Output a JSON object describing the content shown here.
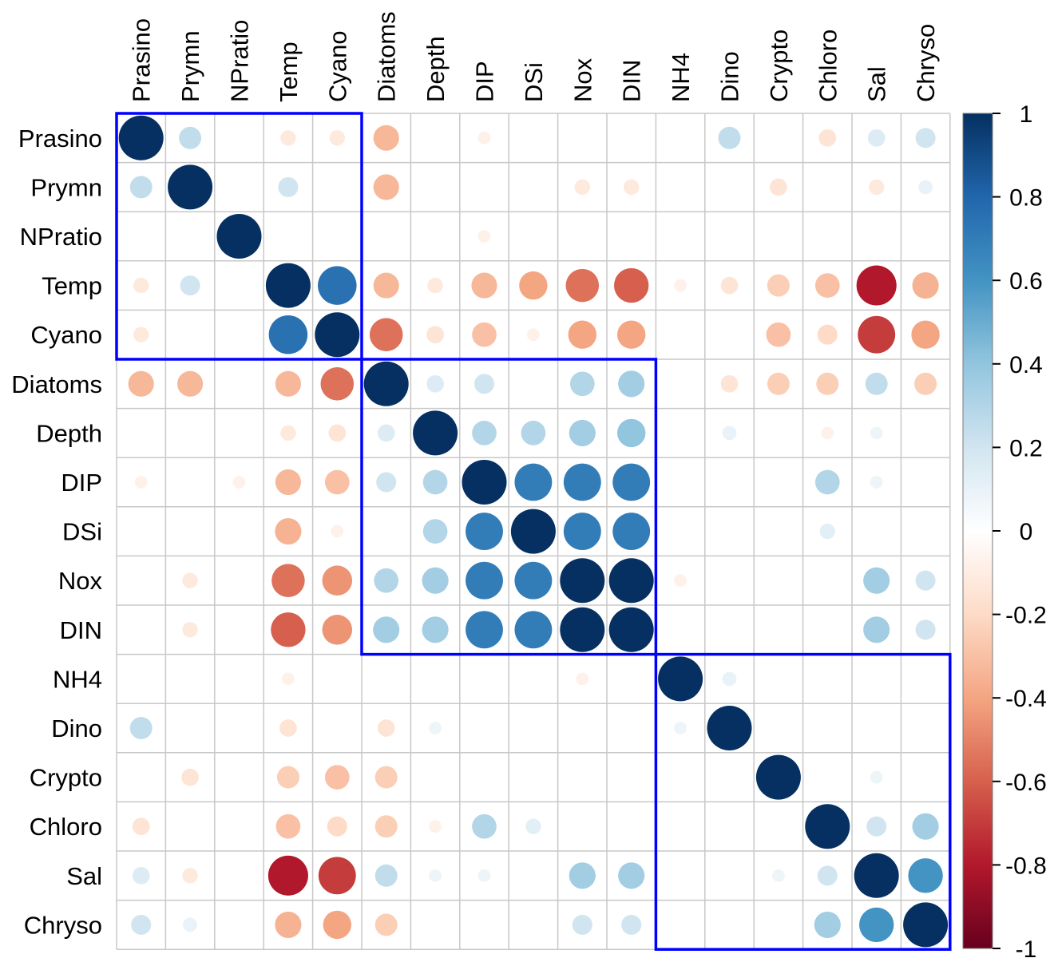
{
  "chart_data": {
    "type": "heatmap",
    "subtype": "correlation-circle-matrix",
    "variables": [
      "Prasino",
      "Prymn",
      "NPratio",
      "Temp",
      "Cyano",
      "Diatoms",
      "Depth",
      "DIP",
      "DSi",
      "Nox",
      "DIN",
      "NH4",
      "Dino",
      "Crypto",
      "Chloro",
      "Sal",
      "Chryso"
    ],
    "matrix": [
      [
        1,
        0.25,
        0,
        -0.12,
        -0.12,
        -0.33,
        0,
        -0.08,
        0,
        0,
        0,
        0,
        0.25,
        0,
        -0.15,
        0.15,
        0.2
      ],
      [
        0.25,
        1,
        0,
        0.2,
        0,
        -0.33,
        0,
        0,
        0,
        -0.12,
        -0.12,
        0,
        0,
        -0.15,
        0,
        -0.12,
        0.1
      ],
      [
        0,
        0,
        1,
        0,
        0,
        0,
        0,
        -0.08,
        0,
        0,
        0,
        0,
        0,
        0,
        0,
        0,
        0
      ],
      [
        -0.12,
        0.2,
        0,
        1,
        0.75,
        -0.33,
        -0.12,
        -0.33,
        -0.4,
        -0.55,
        -0.6,
        -0.08,
        -0.15,
        -0.25,
        -0.3,
        -0.8,
        -0.35
      ],
      [
        -0.12,
        0,
        0,
        0.75,
        1,
        -0.55,
        -0.15,
        -0.3,
        -0.08,
        -0.4,
        -0.4,
        0,
        0,
        -0.3,
        -0.2,
        -0.7,
        -0.4
      ],
      [
        -0.33,
        -0.33,
        0,
        -0.33,
        -0.55,
        1,
        0.15,
        0.2,
        0,
        0.3,
        0.35,
        0,
        -0.15,
        -0.25,
        -0.25,
        0.25,
        -0.25
      ],
      [
        0,
        0,
        0,
        -0.12,
        -0.15,
        0.15,
        1,
        0.3,
        0.3,
        0.35,
        0.4,
        0,
        0.1,
        0,
        -0.08,
        0.08,
        0
      ],
      [
        -0.08,
        0,
        -0.08,
        -0.33,
        -0.3,
        0.2,
        0.3,
        1,
        0.7,
        0.7,
        0.7,
        0,
        0,
        0,
        0.3,
        0.08,
        0
      ],
      [
        0,
        0,
        0,
        -0.35,
        -0.08,
        0,
        0.3,
        0.7,
        1,
        0.7,
        0.7,
        0,
        0,
        0,
        0.12,
        0,
        0
      ],
      [
        0,
        -0.12,
        0,
        -0.55,
        -0.45,
        0.3,
        0.35,
        0.7,
        0.7,
        1,
        1,
        -0.08,
        0,
        0,
        0,
        0.35,
        0.2
      ],
      [
        0,
        -0.12,
        0,
        -0.6,
        -0.45,
        0.35,
        0.35,
        0.7,
        0.7,
        1,
        1,
        0,
        0,
        0,
        0,
        0.35,
        0.2
      ],
      [
        0,
        0,
        0,
        -0.08,
        0,
        0,
        0,
        0,
        0,
        -0.08,
        0,
        1,
        0.1,
        0,
        0,
        0,
        0
      ],
      [
        0.25,
        0,
        0,
        -0.15,
        0,
        -0.15,
        0.08,
        0,
        0,
        0,
        0,
        0.08,
        1,
        0,
        0,
        0,
        0
      ],
      [
        0,
        -0.15,
        0,
        -0.25,
        -0.3,
        -0.25,
        0,
        0,
        0,
        0,
        0,
        0,
        0,
        1,
        0,
        0.08,
        0
      ],
      [
        -0.15,
        0,
        0,
        -0.3,
        -0.2,
        -0.25,
        -0.08,
        0.3,
        0.12,
        0,
        0,
        0,
        0,
        0,
        1,
        0.2,
        0.35
      ],
      [
        0.15,
        -0.12,
        0,
        -0.8,
        -0.7,
        0.25,
        0.08,
        0.08,
        0,
        0.35,
        0.35,
        0,
        0,
        0.08,
        0.2,
        1,
        0.6
      ],
      [
        0.2,
        0.1,
        0,
        -0.35,
        -0.4,
        -0.25,
        0,
        0,
        0,
        0.2,
        0.2,
        0,
        0,
        0,
        0.35,
        0.6,
        1
      ]
    ],
    "clusters": [
      {
        "start": 0,
        "end": 4
      },
      {
        "start": 5,
        "end": 10
      },
      {
        "start": 11,
        "end": 16
      }
    ],
    "colorbar": {
      "ticks": [
        "1",
        "0.8",
        "0.6",
        "0.4",
        "0.2",
        "0",
        "-0.2",
        "-0.4",
        "-0.6",
        "-0.8",
        "-1"
      ],
      "range": [
        -1,
        1
      ],
      "gradient": [
        "#67001F",
        "#B2182B",
        "#D6604D",
        "#F4A582",
        "#FDDBC7",
        "#FFFFFF",
        "#D1E5F0",
        "#92C5DE",
        "#4393C3",
        "#2166AC",
        "#053061"
      ]
    },
    "title": "",
    "xlabel": "",
    "ylabel": ""
  },
  "style": {
    "grid_color": "#C8C8C8",
    "cluster_color": "#0000FF"
  }
}
